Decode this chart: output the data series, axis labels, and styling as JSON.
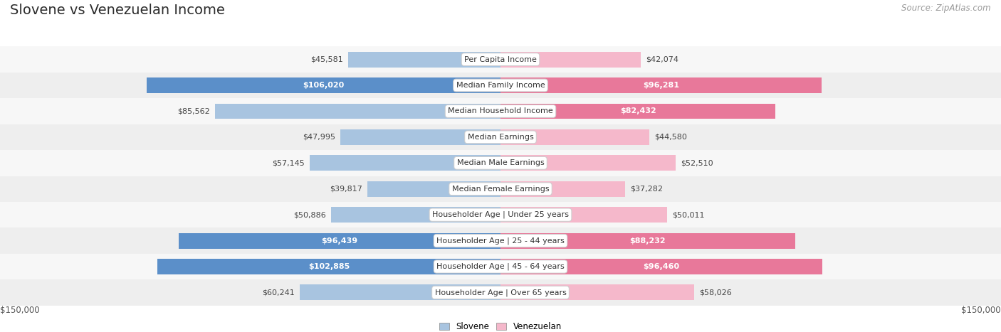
{
  "title": "Slovene vs Venezuelan Income",
  "source": "Source: ZipAtlas.com",
  "categories": [
    "Per Capita Income",
    "Median Family Income",
    "Median Household Income",
    "Median Earnings",
    "Median Male Earnings",
    "Median Female Earnings",
    "Householder Age | Under 25 years",
    "Householder Age | 25 - 44 years",
    "Householder Age | 45 - 64 years",
    "Householder Age | Over 65 years"
  ],
  "slovene_values": [
    45581,
    106020,
    85562,
    47995,
    57145,
    39817,
    50886,
    96439,
    102885,
    60241
  ],
  "venezuelan_values": [
    42074,
    96281,
    82432,
    44580,
    52510,
    37282,
    50011,
    88232,
    96460,
    58026
  ],
  "slovene_labels": [
    "$45,581",
    "$106,020",
    "$85,562",
    "$47,995",
    "$57,145",
    "$39,817",
    "$50,886",
    "$96,439",
    "$102,885",
    "$60,241"
  ],
  "venezuelan_labels": [
    "$42,074",
    "$96,281",
    "$82,432",
    "$44,580",
    "$52,510",
    "$37,282",
    "$50,011",
    "$88,232",
    "$96,460",
    "$58,026"
  ],
  "slovene_label_inside": [
    false,
    true,
    false,
    false,
    false,
    false,
    false,
    true,
    true,
    false
  ],
  "venezuelan_label_inside": [
    false,
    true,
    true,
    false,
    false,
    false,
    false,
    true,
    true,
    false
  ],
  "slovene_color_normal": "#a8c4e0",
  "slovene_color_dark": "#5b8fc9",
  "venezuelan_color_normal": "#f5b8cb",
  "venezuelan_color_dark": "#e8789a",
  "background_color": "#ffffff",
  "row_colors": [
    "#f7f7f7",
    "#eeeeee"
  ],
  "max_value": 150000,
  "x_axis_label_left": "$150,000",
  "x_axis_label_right": "$150,000",
  "legend_slovene": "Slovene",
  "legend_venezuelan": "Venezuelan",
  "title_fontsize": 14,
  "source_fontsize": 8.5,
  "label_fontsize": 8,
  "category_fontsize": 8,
  "bar_height": 0.6
}
